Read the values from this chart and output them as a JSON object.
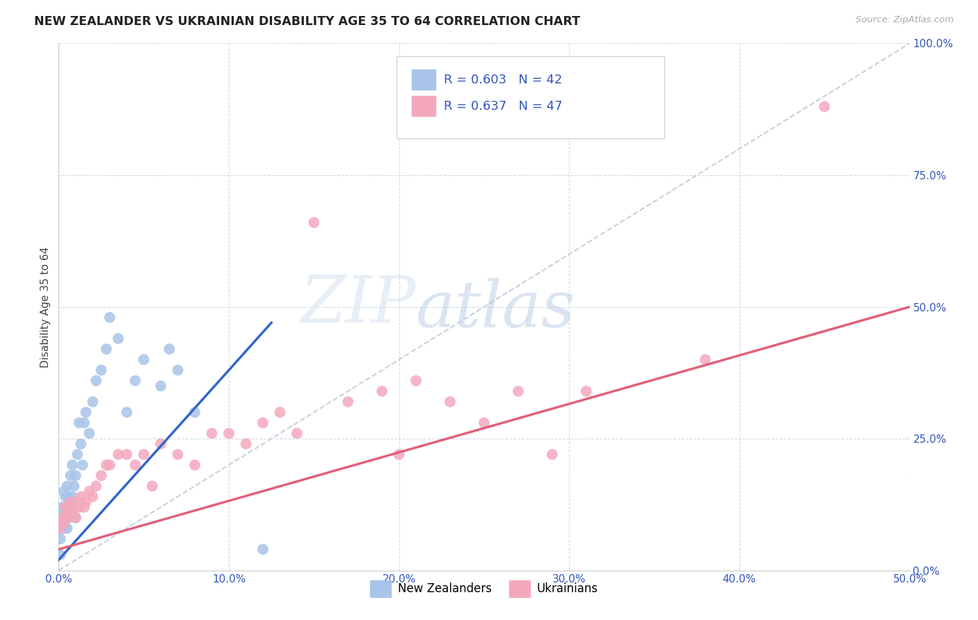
{
  "title": "NEW ZEALANDER VS UKRAINIAN DISABILITY AGE 35 TO 64 CORRELATION CHART",
  "source": "Source: ZipAtlas.com",
  "ylabel": "Disability Age 35 to 64",
  "xlim": [
    0.0,
    0.5
  ],
  "ylim": [
    0.0,
    1.0
  ],
  "xtick_labels": [
    "0.0%",
    "10.0%",
    "20.0%",
    "30.0%",
    "40.0%",
    "50.0%"
  ],
  "xtick_vals": [
    0.0,
    0.1,
    0.2,
    0.3,
    0.4,
    0.5
  ],
  "ytick_labels": [
    "0.0%",
    "25.0%",
    "50.0%",
    "75.0%",
    "100.0%"
  ],
  "ytick_vals": [
    0.0,
    0.25,
    0.5,
    0.75,
    1.0
  ],
  "nz_R": 0.603,
  "nz_N": 42,
  "ukr_R": 0.637,
  "ukr_N": 47,
  "nz_color": "#a8c4e8",
  "nz_line_color": "#3366cc",
  "ukr_color": "#f4a8bc",
  "ukr_line_color": "#e0607a",
  "diagonal_color": "#c8d0e0",
  "watermark_zip": "ZIP",
  "watermark_atlas": "atlas",
  "legend_label_nz": "New Zealanders",
  "legend_label_ukr": "Ukrainians",
  "nz_scatter_x": [
    0.001,
    0.001,
    0.002,
    0.002,
    0.003,
    0.003,
    0.003,
    0.004,
    0.004,
    0.005,
    0.005,
    0.005,
    0.006,
    0.006,
    0.007,
    0.007,
    0.008,
    0.008,
    0.009,
    0.01,
    0.01,
    0.011,
    0.012,
    0.013,
    0.014,
    0.015,
    0.016,
    0.018,
    0.02,
    0.022,
    0.025,
    0.028,
    0.03,
    0.035,
    0.04,
    0.045,
    0.05,
    0.06,
    0.065,
    0.07,
    0.08,
    0.12
  ],
  "nz_scatter_y": [
    0.03,
    0.06,
    0.09,
    0.12,
    0.08,
    0.11,
    0.15,
    0.1,
    0.14,
    0.08,
    0.12,
    0.16,
    0.1,
    0.14,
    0.12,
    0.18,
    0.14,
    0.2,
    0.16,
    0.1,
    0.18,
    0.22,
    0.28,
    0.24,
    0.2,
    0.28,
    0.3,
    0.26,
    0.32,
    0.36,
    0.38,
    0.42,
    0.48,
    0.44,
    0.3,
    0.36,
    0.4,
    0.35,
    0.42,
    0.38,
    0.3,
    0.04
  ],
  "ukr_scatter_x": [
    0.001,
    0.002,
    0.003,
    0.004,
    0.005,
    0.006,
    0.007,
    0.008,
    0.009,
    0.01,
    0.011,
    0.012,
    0.013,
    0.015,
    0.016,
    0.018,
    0.02,
    0.022,
    0.025,
    0.028,
    0.03,
    0.035,
    0.04,
    0.045,
    0.05,
    0.055,
    0.06,
    0.07,
    0.08,
    0.09,
    0.1,
    0.11,
    0.12,
    0.13,
    0.14,
    0.15,
    0.17,
    0.19,
    0.2,
    0.21,
    0.23,
    0.25,
    0.27,
    0.29,
    0.31,
    0.38,
    0.45
  ],
  "ukr_scatter_y": [
    0.08,
    0.1,
    0.09,
    0.12,
    0.1,
    0.11,
    0.13,
    0.11,
    0.12,
    0.1,
    0.13,
    0.12,
    0.14,
    0.12,
    0.13,
    0.15,
    0.14,
    0.16,
    0.18,
    0.2,
    0.2,
    0.22,
    0.22,
    0.2,
    0.22,
    0.16,
    0.24,
    0.22,
    0.2,
    0.26,
    0.26,
    0.24,
    0.28,
    0.3,
    0.26,
    0.66,
    0.32,
    0.34,
    0.22,
    0.36,
    0.32,
    0.28,
    0.34,
    0.22,
    0.34,
    0.4,
    0.88
  ],
  "nz_line_x0": 0.0,
  "nz_line_x1": 0.125,
  "nz_line_y0": 0.02,
  "nz_line_y1": 0.47,
  "ukr_line_x0": 0.0,
  "ukr_line_x1": 0.5,
  "ukr_line_y0": 0.04,
  "ukr_line_y1": 0.5
}
